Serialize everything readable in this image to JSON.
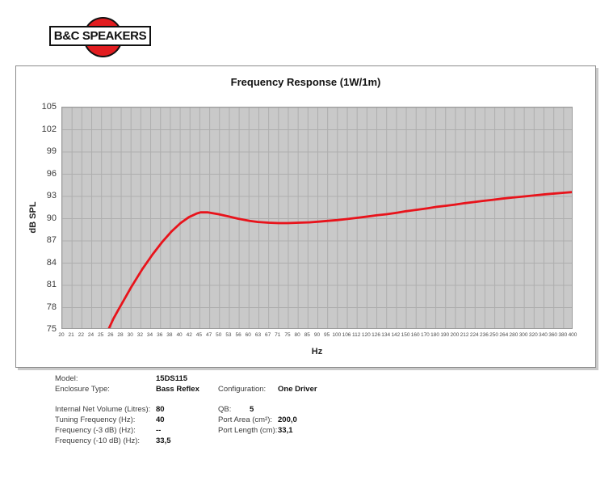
{
  "logo": {
    "text": "B&C SPEAKERS"
  },
  "chart_data": {
    "type": "line",
    "title": "Frequency Response (1W/1m)",
    "xlabel": "Hz",
    "ylabel": "dB SPL",
    "x_scale": "log",
    "xlim": [
      20,
      400
    ],
    "ylim": [
      75,
      105
    ],
    "grid": true,
    "legend": "none",
    "plot_bg_color": "#c9c9c9",
    "grid_color": "#aeaeae",
    "y_ticks": [
      105,
      102,
      99,
      96,
      93,
      90,
      87,
      84,
      81,
      78,
      75
    ],
    "x_ticks": [
      20,
      21,
      22,
      24,
      25,
      26,
      28,
      30,
      32,
      34,
      36,
      38,
      40,
      42,
      45,
      47,
      50,
      53,
      56,
      60,
      63,
      67,
      71,
      75,
      80,
      85,
      90,
      95,
      100,
      106,
      112,
      120,
      126,
      134,
      142,
      150,
      160,
      170,
      180,
      190,
      200,
      212,
      224,
      236,
      250,
      264,
      280,
      300,
      320,
      340,
      360,
      380,
      400
    ],
    "series": [
      {
        "name": "SPL (1W/1m)",
        "color": "#e8131b",
        "x": [
          25.8,
          26.2,
          27,
          28,
          30,
          32,
          34,
          36,
          38,
          40,
          42,
          44,
          45,
          47,
          50,
          53,
          56,
          60,
          63,
          67,
          71,
          75,
          80,
          85,
          90,
          95,
          100,
          106,
          112,
          120,
          126,
          134,
          142,
          150,
          160,
          170,
          180,
          190,
          200,
          212,
          224,
          236,
          250,
          264,
          280,
          300,
          320,
          340,
          360,
          380,
          400
        ],
        "y": [
          74.0,
          75.0,
          76.5,
          78.0,
          80.8,
          83.2,
          85.2,
          86.9,
          88.3,
          89.4,
          90.2,
          90.7,
          90.85,
          90.85,
          90.6,
          90.3,
          90.0,
          89.7,
          89.55,
          89.45,
          89.4,
          89.4,
          89.45,
          89.5,
          89.6,
          89.7,
          89.8,
          89.95,
          90.1,
          90.3,
          90.45,
          90.6,
          90.8,
          91.0,
          91.2,
          91.4,
          91.6,
          91.75,
          91.9,
          92.1,
          92.25,
          92.4,
          92.55,
          92.7,
          92.85,
          93.0,
          93.15,
          93.3,
          93.4,
          93.5,
          93.6
        ]
      }
    ]
  },
  "specs": {
    "rows_top": [
      {
        "label": "Model:",
        "value": "15DS115",
        "label2": "",
        "value2": ""
      },
      {
        "label": "Enclosure Type:",
        "value": "Bass Reflex",
        "label2": "Configuration:",
        "value2": "One Driver"
      }
    ],
    "rows_bottom": [
      {
        "label": "Internal Net Volume (Litres):",
        "value": "80",
        "label2": "QB:",
        "value2": "5"
      },
      {
        "label": "Tuning Frequency (Hz):",
        "value": "40",
        "label2": "Port Area (cm²):",
        "value2": "200,0"
      },
      {
        "label": "Frequency (-3 dB) (Hz):",
        "value": "--",
        "label2": "Port Length (cm):",
        "value2": "33,1"
      },
      {
        "label": "Frequency (-10 dB) (Hz):",
        "value": "33,5",
        "label2": "",
        "value2": ""
      }
    ]
  }
}
